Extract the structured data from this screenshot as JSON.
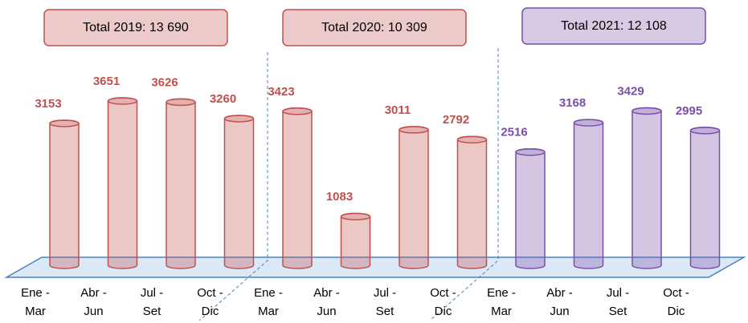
{
  "chart_data": {
    "type": "bar",
    "groups": [
      {
        "title": "Total 2019: 13 690",
        "color": "#c0504d",
        "categories": [
          [
            "Ene -",
            "Mar"
          ],
          [
            "Abr -",
            "Jun"
          ],
          [
            "Jul -",
            "Set"
          ],
          [
            "Oct -",
            "Dic"
          ]
        ],
        "values": [
          3153,
          3651,
          3626,
          3260
        ]
      },
      {
        "title": "Total 2020: 10 309",
        "color": "#c0504d",
        "categories": [
          [
            "Ene -",
            "Mar"
          ],
          [
            "Abr -",
            "Jun"
          ],
          [
            "Jul -",
            "Set"
          ],
          [
            "Oct -",
            "Dic"
          ]
        ],
        "values": [
          3423,
          1083,
          3011,
          2792
        ]
      },
      {
        "title": "Total 2021: 12 108",
        "color": "#7a4fa8",
        "categories": [
          [
            "Ene -",
            "Mar"
          ],
          [
            "Abr -",
            "Jun"
          ],
          [
            "Jul -",
            "Set"
          ],
          [
            "Oct -",
            "Dic"
          ]
        ],
        "values": [
          2516,
          3168,
          3429,
          2995
        ]
      }
    ]
  }
}
